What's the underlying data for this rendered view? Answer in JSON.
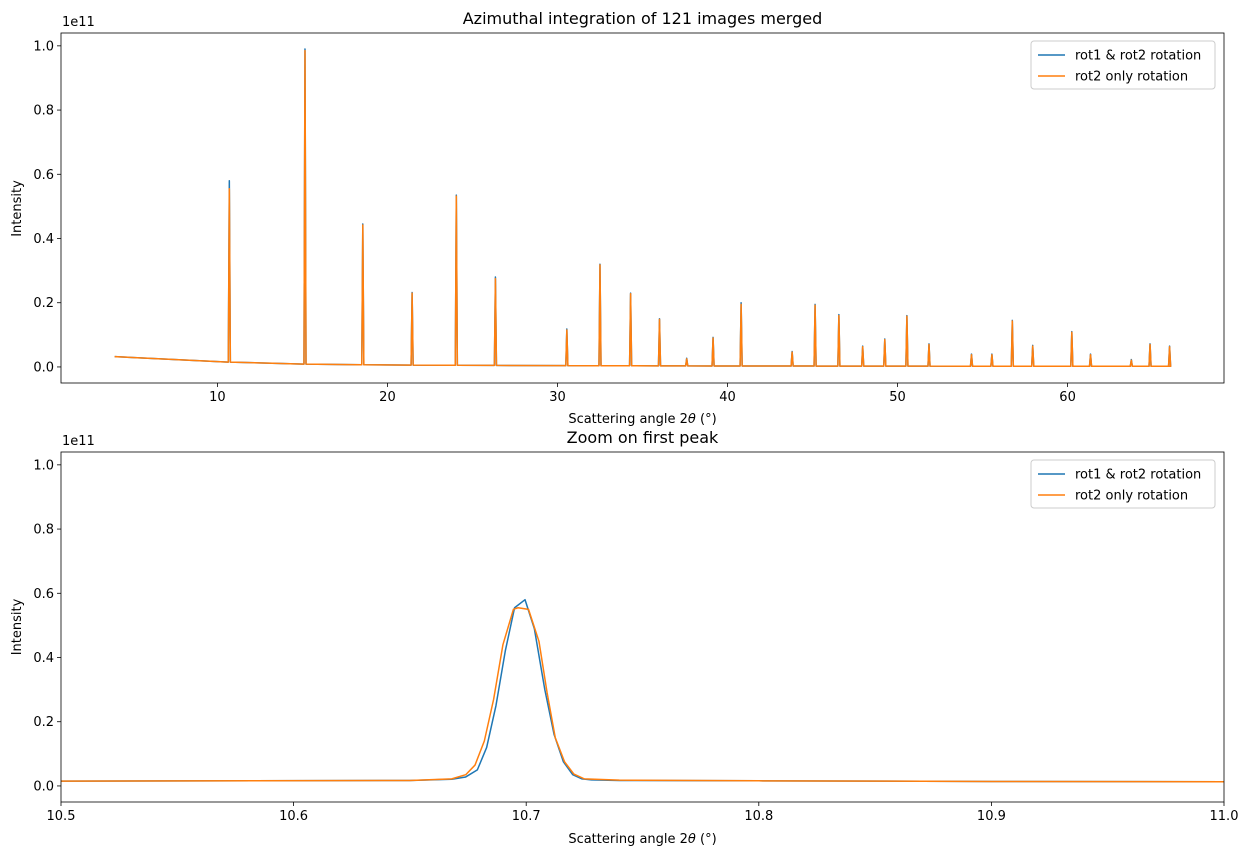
{
  "chart_data": [
    {
      "type": "line",
      "title": "Azimuthal integration of 121 images merged",
      "xlabel_prefix": "Scattering angle 2",
      "xlabel_theta": "θ",
      "xlabel_suffix": " (°)",
      "ylabel": "Intensity",
      "y_offset_label": "1e11",
      "xlim": [
        0.8,
        69.2
      ],
      "ylim": [
        -0.05,
        1.04
      ],
      "x_ticks": [
        10,
        20,
        30,
        40,
        50,
        60
      ],
      "x_tick_labels": [
        "10",
        "20",
        "30",
        "40",
        "50",
        "60"
      ],
      "y_ticks": [
        0.0,
        0.2,
        0.4,
        0.6,
        0.8,
        1.0
      ],
      "y_tick_labels": [
        "0.0",
        "0.2",
        "0.4",
        "0.6",
        "0.8",
        "1.0"
      ],
      "legend_position": "upper right",
      "background": {
        "x": [
          4,
          5,
          6,
          8,
          10,
          12,
          15,
          20,
          30,
          40,
          50,
          60,
          66
        ],
        "y": [
          0.032,
          0.027,
          0.024,
          0.019,
          0.016,
          0.013,
          0.009,
          0.006,
          0.004,
          0.003,
          0.0025,
          0.002,
          0.002
        ]
      },
      "peak_half_width": 0.06,
      "series": [
        {
          "name": "rot1 & rot2 rotation",
          "color": "#1f77b4",
          "peaks": [
            [
              10.7,
              0.58
            ],
            [
              15.15,
              0.99
            ],
            [
              18.55,
              0.445
            ],
            [
              21.45,
              0.232
            ],
            [
              24.05,
              0.535
            ],
            [
              26.35,
              0.28
            ],
            [
              30.55,
              0.118
            ],
            [
              32.5,
              0.32
            ],
            [
              34.3,
              0.23
            ],
            [
              36.0,
              0.15
            ],
            [
              37.6,
              0.027
            ],
            [
              39.15,
              0.092
            ],
            [
              40.8,
              0.2
            ],
            [
              43.8,
              0.048
            ],
            [
              45.15,
              0.195
            ],
            [
              46.55,
              0.163
            ],
            [
              47.95,
              0.065
            ],
            [
              49.25,
              0.087
            ],
            [
              50.55,
              0.16
            ],
            [
              51.85,
              0.072
            ],
            [
              54.35,
              0.04
            ],
            [
              55.55,
              0.04
            ],
            [
              56.75,
              0.145
            ],
            [
              57.95,
              0.067
            ],
            [
              60.25,
              0.11
            ],
            [
              61.35,
              0.04
            ],
            [
              63.75,
              0.023
            ],
            [
              64.85,
              0.072
            ],
            [
              66.0,
              0.065
            ]
          ]
        },
        {
          "name": "rot2 only rotation",
          "color": "#ff7f0e",
          "peaks": [
            [
              10.7,
              0.555
            ],
            [
              15.15,
              0.985
            ],
            [
              18.55,
              0.442
            ],
            [
              21.45,
              0.23
            ],
            [
              24.05,
              0.532
            ],
            [
              26.35,
              0.275
            ],
            [
              30.55,
              0.115
            ],
            [
              32.5,
              0.318
            ],
            [
              34.3,
              0.228
            ],
            [
              36.0,
              0.148
            ],
            [
              37.6,
              0.025
            ],
            [
              39.15,
              0.09
            ],
            [
              40.8,
              0.195
            ],
            [
              43.8,
              0.046
            ],
            [
              45.15,
              0.192
            ],
            [
              46.55,
              0.16
            ],
            [
              47.95,
              0.063
            ],
            [
              49.25,
              0.085
            ],
            [
              50.55,
              0.158
            ],
            [
              51.85,
              0.07
            ],
            [
              54.35,
              0.038
            ],
            [
              55.55,
              0.038
            ],
            [
              56.75,
              0.143
            ],
            [
              57.95,
              0.065
            ],
            [
              60.25,
              0.108
            ],
            [
              61.35,
              0.038
            ],
            [
              63.75,
              0.021
            ],
            [
              64.85,
              0.07
            ],
            [
              66.0,
              0.063
            ]
          ]
        }
      ]
    },
    {
      "type": "line",
      "title": "Zoom on first peak",
      "xlabel_prefix": "Scattering angle 2",
      "xlabel_theta": "θ",
      "xlabel_suffix": " (°)",
      "ylabel": "Intensity",
      "y_offset_label": "1e11",
      "xlim": [
        10.5,
        11.0
      ],
      "ylim": [
        -0.05,
        1.04
      ],
      "x_ticks": [
        10.5,
        10.6,
        10.7,
        10.8,
        10.9,
        11.0
      ],
      "x_tick_labels": [
        "10.5",
        "10.6",
        "10.7",
        "10.8",
        "10.9",
        "11.0"
      ],
      "y_ticks": [
        0.0,
        0.2,
        0.4,
        0.6,
        0.8,
        1.0
      ],
      "y_tick_labels": [
        "0.0",
        "0.2",
        "0.4",
        "0.6",
        "0.8",
        "1.0"
      ],
      "legend_position": "upper right",
      "series": [
        {
          "name": "rot1 & rot2 rotation",
          "color": "#1f77b4",
          "x": [
            10.5,
            10.65,
            10.668,
            10.674,
            10.679,
            10.683,
            10.687,
            10.691,
            10.695,
            10.6995,
            10.7035,
            10.708,
            10.712,
            10.716,
            10.72,
            10.724,
            10.728,
            10.74,
            10.8,
            10.9,
            11.0
          ],
          "y": [
            0.015,
            0.017,
            0.021,
            0.028,
            0.05,
            0.12,
            0.25,
            0.42,
            0.555,
            0.58,
            0.49,
            0.3,
            0.16,
            0.075,
            0.035,
            0.022,
            0.019,
            0.017,
            0.016,
            0.014,
            0.013
          ]
        },
        {
          "name": "rot2 only rotation",
          "color": "#ff7f0e",
          "x": [
            10.5,
            10.65,
            10.668,
            10.674,
            10.678,
            10.682,
            10.686,
            10.69,
            10.6945,
            10.6965,
            10.701,
            10.7055,
            10.709,
            10.7125,
            10.7165,
            10.7205,
            10.725,
            10.74,
            10.8,
            10.9,
            11.0
          ],
          "y": [
            0.015,
            0.017,
            0.022,
            0.035,
            0.065,
            0.14,
            0.27,
            0.44,
            0.55,
            0.555,
            0.55,
            0.45,
            0.29,
            0.15,
            0.075,
            0.037,
            0.022,
            0.018,
            0.016,
            0.014,
            0.013
          ]
        }
      ]
    }
  ]
}
